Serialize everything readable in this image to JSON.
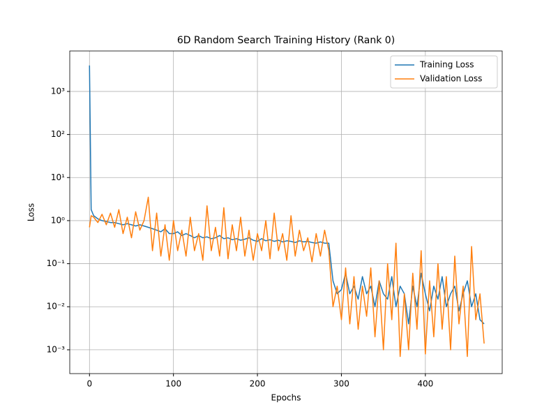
{
  "chart_data": {
    "type": "line",
    "title": "6D Random Search Training History (Rank 0)",
    "x_label": "Epochs",
    "y_label": "Loss",
    "log_y": true,
    "grid": true,
    "legend": "upper right",
    "xlim": [
      -23.5,
      491.5
    ],
    "xticks": [
      0,
      100,
      200,
      300,
      400
    ],
    "ylim": [
      0.00028,
      8700
    ],
    "yticks": [
      {
        "value": 0.001,
        "label": "10⁻³"
      },
      {
        "value": 0.01,
        "label": "10⁻²"
      },
      {
        "value": 0.1,
        "label": "10⁻¹"
      },
      {
        "value": 1,
        "label": "10⁰"
      },
      {
        "value": 10,
        "label": "10¹"
      },
      {
        "value": 100,
        "label": "10²"
      },
      {
        "value": 1000,
        "label": "10³"
      }
    ],
    "x": [
      0,
      2,
      5,
      10,
      15,
      20,
      25,
      30,
      35,
      40,
      45,
      50,
      55,
      60,
      65,
      70,
      75,
      80,
      85,
      90,
      95,
      100,
      105,
      110,
      115,
      120,
      125,
      130,
      135,
      140,
      145,
      150,
      155,
      160,
      165,
      170,
      175,
      180,
      185,
      190,
      195,
      200,
      205,
      210,
      215,
      220,
      225,
      230,
      235,
      240,
      245,
      250,
      255,
      260,
      265,
      270,
      275,
      280,
      285,
      290,
      295,
      300,
      305,
      310,
      315,
      320,
      325,
      330,
      335,
      340,
      345,
      350,
      355,
      360,
      365,
      370,
      375,
      380,
      385,
      390,
      395,
      400,
      405,
      410,
      415,
      420,
      425,
      430,
      435,
      440,
      445,
      450,
      455,
      460,
      465,
      470
    ],
    "series": [
      {
        "name": "Training Loss",
        "color": "#1f77b4",
        "values": [
          4000,
          1.8,
          1.3,
          1.1,
          1.0,
          0.95,
          0.9,
          0.9,
          0.85,
          0.8,
          0.85,
          0.8,
          0.75,
          0.8,
          0.75,
          0.7,
          0.65,
          0.6,
          0.55,
          0.65,
          0.5,
          0.5,
          0.55,
          0.45,
          0.5,
          0.45,
          0.4,
          0.45,
          0.4,
          0.42,
          0.38,
          0.4,
          0.45,
          0.38,
          0.4,
          0.36,
          0.38,
          0.35,
          0.37,
          0.4,
          0.35,
          0.33,
          0.38,
          0.34,
          0.36,
          0.33,
          0.35,
          0.32,
          0.34,
          0.33,
          0.31,
          0.34,
          0.32,
          0.33,
          0.31,
          0.3,
          0.32,
          0.3,
          0.3,
          0.04,
          0.02,
          0.025,
          0.06,
          0.02,
          0.03,
          0.015,
          0.05,
          0.02,
          0.03,
          0.01,
          0.04,
          0.02,
          0.015,
          0.05,
          0.01,
          0.03,
          0.02,
          0.004,
          0.03,
          0.01,
          0.06,
          0.02,
          0.008,
          0.03,
          0.015,
          0.05,
          0.01,
          0.02,
          0.03,
          0.008,
          0.02,
          0.04,
          0.01,
          0.02,
          0.005,
          0.004
        ]
      },
      {
        "name": "Validation Loss",
        "color": "#ff7f0e",
        "values": [
          0.7,
          1.3,
          1.2,
          0.9,
          1.4,
          0.8,
          1.5,
          0.7,
          1.8,
          0.5,
          1.2,
          0.4,
          1.6,
          0.6,
          1.0,
          3.5,
          0.2,
          1.5,
          0.15,
          0.8,
          0.12,
          1.0,
          0.2,
          0.6,
          0.15,
          1.2,
          0.2,
          0.5,
          0.12,
          2.2,
          0.2,
          0.7,
          0.15,
          2.0,
          0.13,
          0.8,
          0.2,
          1.2,
          0.15,
          0.6,
          0.12,
          0.5,
          0.2,
          1.0,
          0.13,
          1.5,
          0.2,
          0.5,
          0.12,
          1.3,
          0.15,
          0.6,
          0.2,
          0.4,
          0.11,
          0.5,
          0.15,
          0.6,
          0.2,
          0.01,
          0.03,
          0.005,
          0.08,
          0.004,
          0.05,
          0.003,
          0.03,
          0.006,
          0.08,
          0.002,
          0.04,
          0.001,
          0.1,
          0.005,
          0.3,
          0.0007,
          0.02,
          0.001,
          0.06,
          0.003,
          0.2,
          0.0008,
          0.04,
          0.002,
          0.1,
          0.003,
          0.05,
          0.001,
          0.15,
          0.004,
          0.03,
          0.0007,
          0.25,
          0.005,
          0.02,
          0.0014
        ]
      }
    ]
  }
}
